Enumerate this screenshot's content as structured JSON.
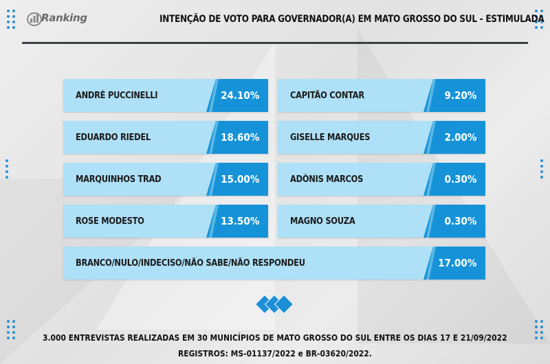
{
  "header": {
    "logo_text": "Ranking",
    "title": "INTENÇÃO DE VOTO PARA GOVERNADOR(A) EM MATO GROSSO DO SUL - ESTIMULADA"
  },
  "chart_data": {
    "type": "bar",
    "title": "INTENÇÃO DE VOTO PARA GOVERNADOR(A) EM MATO GROSSO DO SUL - ESTIMULADA",
    "categories": [
      "ANDRÉ PUCCINELLI",
      "CAPITÃO CONTAR",
      "EDUARDO RIEDEL",
      "GISELLE MARQUES",
      "MARQUINHOS TRAD",
      "ADÔNIS MARCOS",
      "ROSE MODESTO",
      "MAGNO SOUZA",
      "BRANCO/NULO/INDECISO/NÃO SABE/NÃO RESPONDEU"
    ],
    "values": [
      24.1,
      9.2,
      18.6,
      2.0,
      15.0,
      0.3,
      13.5,
      0.3,
      17.0
    ],
    "labels": [
      "24.10%",
      "9.20%",
      "18.60%",
      "2.00%",
      "15.00%",
      "0.30%",
      "13.50%",
      "0.30%",
      "17.00%"
    ],
    "unit": "%"
  },
  "footer": {
    "line1": "3.000 ENTREVISTAS REALIZADAS EM 30 MUNICÍPIOS DE MATO GROSSO DO SUL ENTRE OS DIAS 17 E 21/09/2022",
    "line2": "REGISTROS: MS-01137/2022 e BR-03620/2022."
  },
  "colors": {
    "bar_fill": "#aee0f7",
    "value_fill": "#1693d8",
    "accent": "#2a8fd4",
    "rule": "#3b3f45"
  }
}
